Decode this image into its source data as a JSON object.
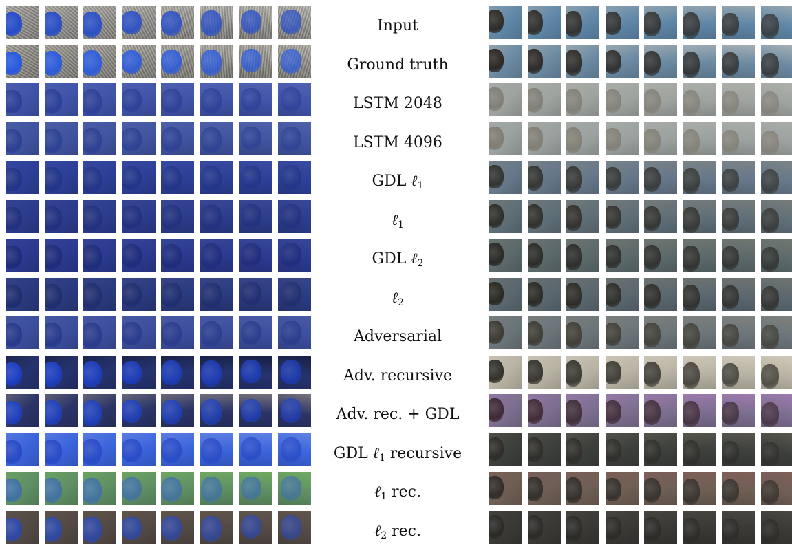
{
  "rows": [
    {
      "label": "Input",
      "left": {
        "bg": "#8f8d88",
        "blob": "#1f48c9",
        "edge": "#d8d4cc",
        "noise": true
      },
      "right": {
        "bg": "#5f87a8",
        "blob": "#2b2722",
        "edge": "#c9c3b8",
        "noise": false
      }
    },
    {
      "label": "Ground truth",
      "left": {
        "bg": "#8a8780",
        "blob": "#2356e0",
        "edge": "#cfcac0",
        "noise": true
      },
      "right": {
        "bg": "#6b8aa2",
        "blob": "#26221e",
        "edge": "#d8d0c6",
        "noise": false
      }
    },
    {
      "label": "LSTM 2048",
      "left": {
        "bg": "#3f53a8",
        "blob": "#2a3e96",
        "edge": "#5d6fb8",
        "noise": false
      },
      "right": {
        "bg": "#9ea39f",
        "blob": "#7f7d74",
        "edge": "#b9bab3",
        "noise": false
      }
    },
    {
      "label": "LSTM 4096",
      "left": {
        "bg": "#40549f",
        "blob": "#2b3f92",
        "edge": "#5a6bb2",
        "noise": false
      },
      "right": {
        "bg": "#9aa19f",
        "blob": "#7e7b70",
        "edge": "#b6b7b0",
        "noise": false
      }
    },
    {
      "label": "GDL ℓ1",
      "left": {
        "bg": "#2c3f97",
        "blob": "#213386",
        "edge": "#4657aa",
        "noise": false
      },
      "right": {
        "bg": "#66788a",
        "blob": "#2f302c",
        "edge": "#8f8e84",
        "noise": false
      }
    },
    {
      "label": "ℓ1",
      "left": {
        "bg": "#2b3c8c",
        "blob": "#1f2f7b",
        "edge": "#44529c",
        "noise": false
      },
      "right": {
        "bg": "#5f6f78",
        "blob": "#2c2b26",
        "edge": "#8a877c",
        "noise": false
      }
    },
    {
      "label": "GDL ℓ2",
      "left": {
        "bg": "#2b3a90",
        "blob": "#1c2a78",
        "edge": "#41519e",
        "noise": false
      },
      "right": {
        "bg": "#5c6a6c",
        "blob": "#272723",
        "edge": "#858375",
        "noise": false
      }
    },
    {
      "label": "ℓ2",
      "left": {
        "bg": "#2a3a7f",
        "blob": "#1e2c6d",
        "edge": "#415090",
        "noise": false
      },
      "right": {
        "bg": "#5b6870",
        "blob": "#26251f",
        "edge": "#807d70",
        "noise": false
      }
    },
    {
      "label": "Adversarial",
      "left": {
        "bg": "#3b4e9c",
        "blob": "#263889",
        "edge": "#5565ad",
        "noise": false
      },
      "right": {
        "bg": "#6b757a",
        "blob": "#3a382f",
        "edge": "#8f8c80",
        "noise": false
      }
    },
    {
      "label": "Adv. recursive",
      "left": {
        "bg": "#26336e",
        "blob": "#1c3ec4",
        "edge": "#0c0f1d",
        "noise": false
      },
      "right": {
        "bg": "#b8b3a4",
        "blob": "#2b2a24",
        "edge": "#e5dccb",
        "noise": false
      }
    },
    {
      "label": "Adv. rec. + GDL",
      "left": {
        "bg": "#2a3467",
        "blob": "#1e40bf",
        "edge": "#b9a98e",
        "noise": false
      },
      "right": {
        "bg": "#7d6f90",
        "blob": "#3a2630",
        "edge": "#b985c8",
        "noise": false
      }
    },
    {
      "label": "GDL ℓ1 recursive",
      "left": {
        "bg": "#3b63da",
        "blob": "#2648c4",
        "edge": "#7f9bea",
        "noise": false
      },
      "right": {
        "bg": "#3c3f3b",
        "blob": "#2d2c28",
        "edge": "#6e6a5d",
        "noise": false
      }
    },
    {
      "label": "ℓ1 rec.",
      "left": {
        "bg": "#5f8f64",
        "blob": "#3f6fa4",
        "edge": "#7fc25f",
        "noise": false
      },
      "right": {
        "bg": "#6f5f55",
        "blob": "#2d2a26",
        "edge": "#8d5f5c",
        "noise": false
      }
    },
    {
      "label": "ℓ2 rec.",
      "left": {
        "bg": "#544a45",
        "blob": "#2c47a8",
        "edge": "#6d5f53",
        "noise": false
      },
      "right": {
        "bg": "#3a3935",
        "blob": "#2a2926",
        "edge": "#55524a",
        "noise": false
      }
    }
  ]
}
